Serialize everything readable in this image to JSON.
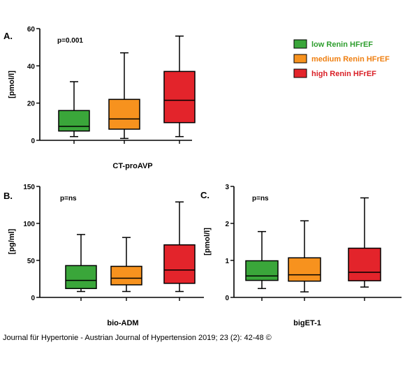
{
  "colors": {
    "low": "#3aa63a",
    "medium": "#f7921e",
    "high": "#e3242b",
    "axis": "#000000"
  },
  "legend": [
    {
      "label": "low Renin HFrEF",
      "color": "#3aa63a",
      "text_color": "#2e9e2e"
    },
    {
      "label": "medium Renin HFrEF",
      "color": "#f7921e",
      "text_color": "#ef7f10"
    },
    {
      "label": "high Renin HFrEF",
      "color": "#e3242b",
      "text_color": "#d91f26"
    }
  ],
  "footer": "Journal für Hypertonie - Austrian Journal of Hypertension 2019; 23 (2): 42-48 ©",
  "chart_data": [
    {
      "type": "box",
      "panel": "A.",
      "xlabel": "CT-proAVP",
      "ylabel": "[pmol/l]",
      "annotation": "p=0.001",
      "ylim": [
        0,
        60
      ],
      "yticks": [
        "0",
        "20",
        "40",
        "60"
      ],
      "series": [
        {
          "name": "low Renin HFrEF",
          "min": 2,
          "q1": 5,
          "median": 7.5,
          "q3": 16,
          "max": 31.5
        },
        {
          "name": "medium Renin HFrEF",
          "min": 1,
          "q1": 6,
          "median": 11.5,
          "q3": 22,
          "max": 47
        },
        {
          "name": "high Renin HFrEF",
          "min": 2,
          "q1": 9.5,
          "median": 21.5,
          "q3": 37,
          "max": 56
        }
      ]
    },
    {
      "type": "box",
      "panel": "B.",
      "xlabel": "bio-ADM",
      "ylabel": "[pg/ml]",
      "annotation": "p=ns",
      "ylim": [
        0,
        150
      ],
      "yticks": [
        "0",
        "50",
        "100",
        "150"
      ],
      "series": [
        {
          "name": "low Renin HFrEF",
          "min": 8,
          "q1": 12,
          "median": 23,
          "q3": 43,
          "max": 85
        },
        {
          "name": "medium Renin HFrEF",
          "min": 8,
          "q1": 17,
          "median": 26,
          "q3": 42,
          "max": 81
        },
        {
          "name": "high Renin HFrEF",
          "min": 8,
          "q1": 19,
          "median": 37,
          "q3": 71,
          "max": 129
        }
      ]
    },
    {
      "type": "box",
      "panel": "C.",
      "xlabel": "bigET-1",
      "ylabel": "[pmol/l]",
      "annotation": "p=ns",
      "ylim": [
        0,
        3
      ],
      "yticks": [
        "0",
        "1",
        "2",
        "3"
      ],
      "series": [
        {
          "name": "low Renin HFrEF",
          "min": 0.24,
          "q1": 0.46,
          "median": 0.58,
          "q3": 0.99,
          "max": 1.78
        },
        {
          "name": "medium Renin HFrEF",
          "min": 0.15,
          "q1": 0.44,
          "median": 0.61,
          "q3": 1.07,
          "max": 2.07
        },
        {
          "name": "high Renin HFrEF",
          "min": 0.28,
          "q1": 0.45,
          "median": 0.68,
          "q3": 1.33,
          "max": 2.69
        }
      ]
    }
  ]
}
